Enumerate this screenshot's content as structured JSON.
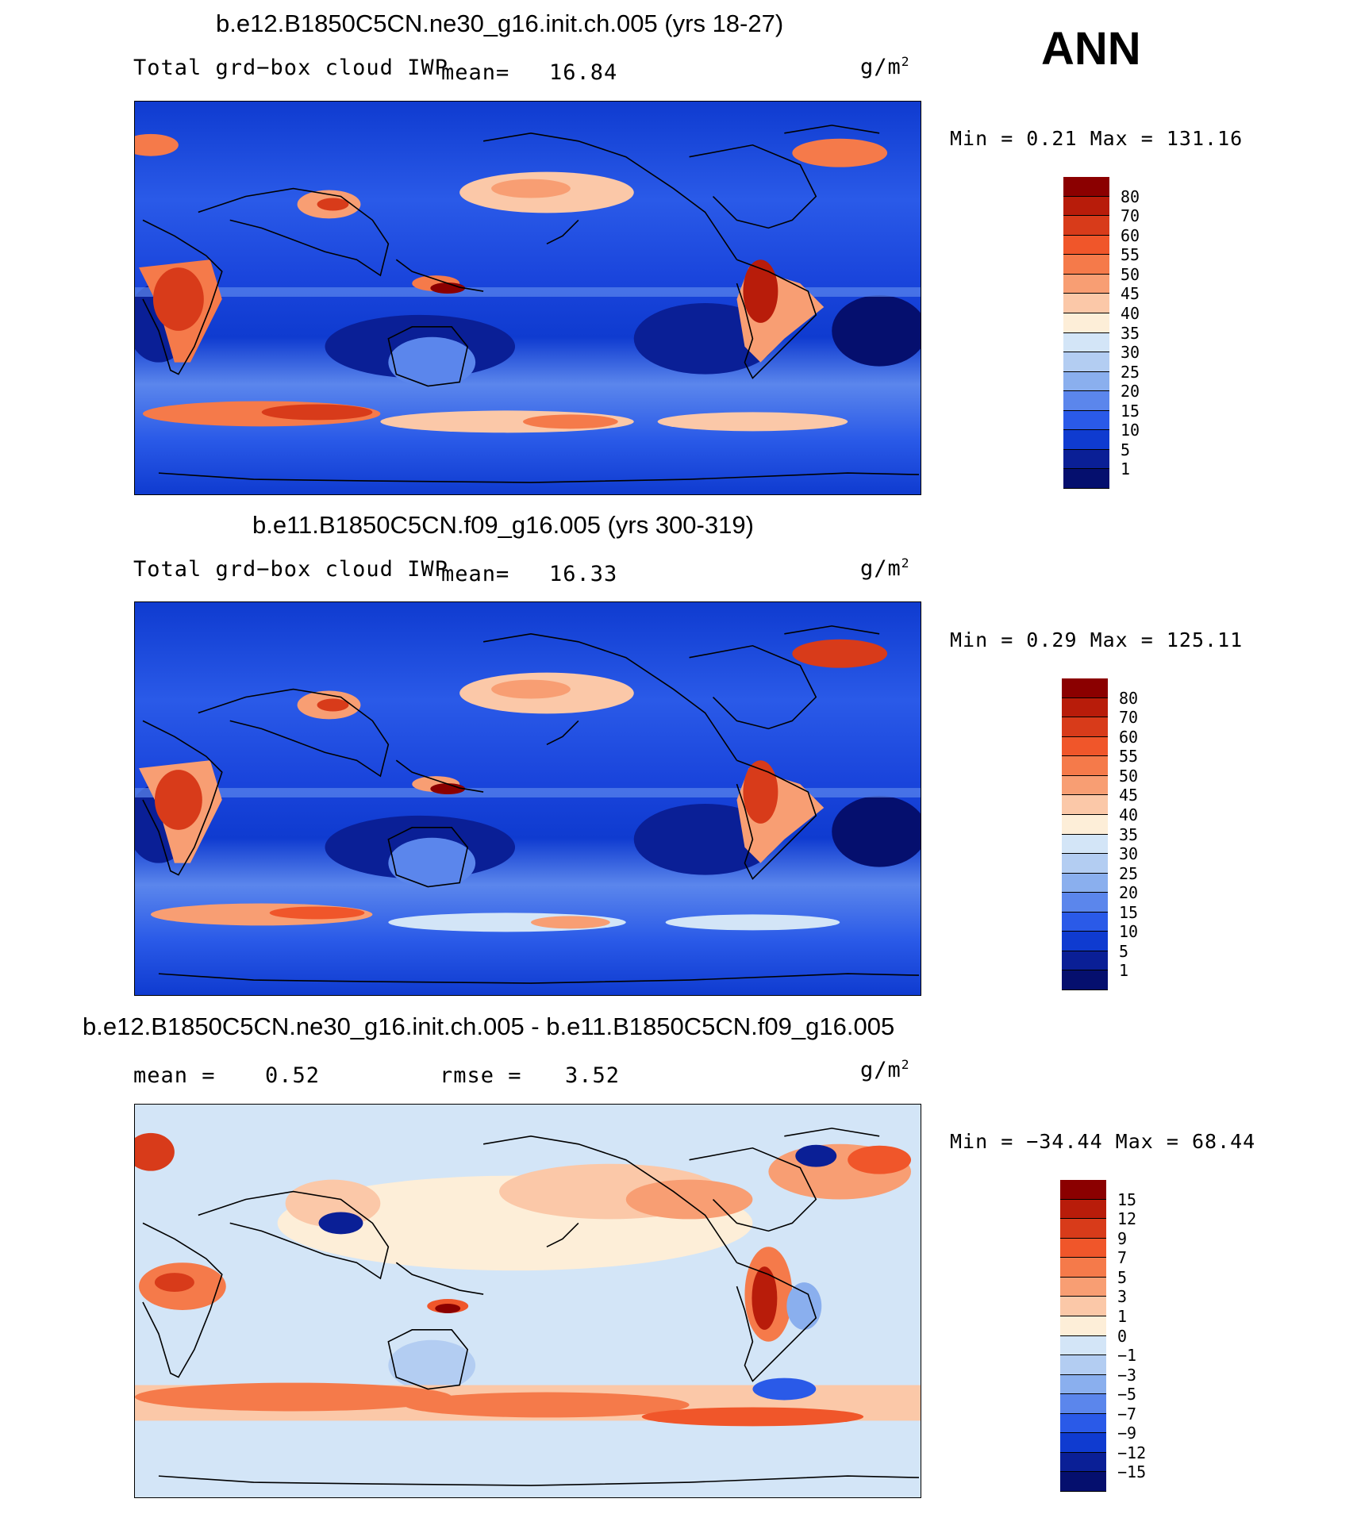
{
  "season": "ANN",
  "colors": {
    "ocean_low": "#1a3fd6",
    "ocean_deep": "#0b1f9c",
    "land_high": "#e0472a",
    "land_max": "#8b0000",
    "diff_bg": "#cfe2f7",
    "diff_warm": "#f7b99a"
  },
  "panels": [
    {
      "title": "b.e12.B1850C5CN.ne30_g16.init.ch.005 (yrs 18-27)",
      "left_label": "Total grd−box cloud IWP",
      "stat_label": "mean=",
      "stat_value": "16.84",
      "units_base": "g/m",
      "units_exp": "2",
      "minmax": "Min =    0.21 Max = 131.16",
      "colorbar_labels": [
        "80",
        "70",
        "60",
        "55",
        "50",
        "45",
        "40",
        "35",
        "30",
        "25",
        "20",
        "15",
        "10",
        "5",
        "1"
      ],
      "colorbar_colors": [
        "#8b0000",
        "#b81c0a",
        "#d83b1a",
        "#f0562a",
        "#f57a4a",
        "#f89e73",
        "#fbc8a8",
        "#fdeed8",
        "#d3e5f7",
        "#b3cdf2",
        "#8aafee",
        "#5b86ec",
        "#2a5ae8",
        "#0f3bd0",
        "#0a1f96",
        "#050f6e"
      ]
    },
    {
      "title": "b.e11.B1850C5CN.f09_g16.005 (yrs 300-319)",
      "left_label": "Total grd−box cloud IWP",
      "stat_label": "mean=",
      "stat_value": "16.33",
      "units_base": "g/m",
      "units_exp": "2",
      "minmax": "Min =    0.29 Max = 125.11",
      "colorbar_labels": [
        "80",
        "70",
        "60",
        "55",
        "50",
        "45",
        "40",
        "35",
        "30",
        "25",
        "20",
        "15",
        "10",
        "5",
        "1"
      ],
      "colorbar_colors": [
        "#8b0000",
        "#b81c0a",
        "#d83b1a",
        "#f0562a",
        "#f57a4a",
        "#f89e73",
        "#fbc8a8",
        "#fdeed8",
        "#d3e5f7",
        "#b3cdf2",
        "#8aafee",
        "#5b86ec",
        "#2a5ae8",
        "#0f3bd0",
        "#0a1f96",
        "#050f6e"
      ]
    },
    {
      "title": "b.e12.B1850C5CN.ne30_g16.init.ch.005 - b.e11.B1850C5CN.f09_g16.005",
      "mean_label": "mean =",
      "mean_value": "0.52",
      "rmse_label": "rmse =",
      "rmse_value": "3.52",
      "units_base": "g/m",
      "units_exp": "2",
      "minmax": "Min = −34.44 Max =   68.44",
      "colorbar_labels": [
        "15",
        "12",
        "9",
        "7",
        "5",
        "3",
        "1",
        "0",
        "−1",
        "−3",
        "−5",
        "−7",
        "−9",
        "−12",
        "−15"
      ],
      "colorbar_colors": [
        "#8b0000",
        "#b81c0a",
        "#d83b1a",
        "#f0562a",
        "#f57a4a",
        "#f89e73",
        "#fbc8a8",
        "#fdeed8",
        "#d3e5f7",
        "#b3cdf2",
        "#8aafee",
        "#5b86ec",
        "#2a5ae8",
        "#0f3bd0",
        "#0a1f96",
        "#050f6e"
      ]
    }
  ]
}
